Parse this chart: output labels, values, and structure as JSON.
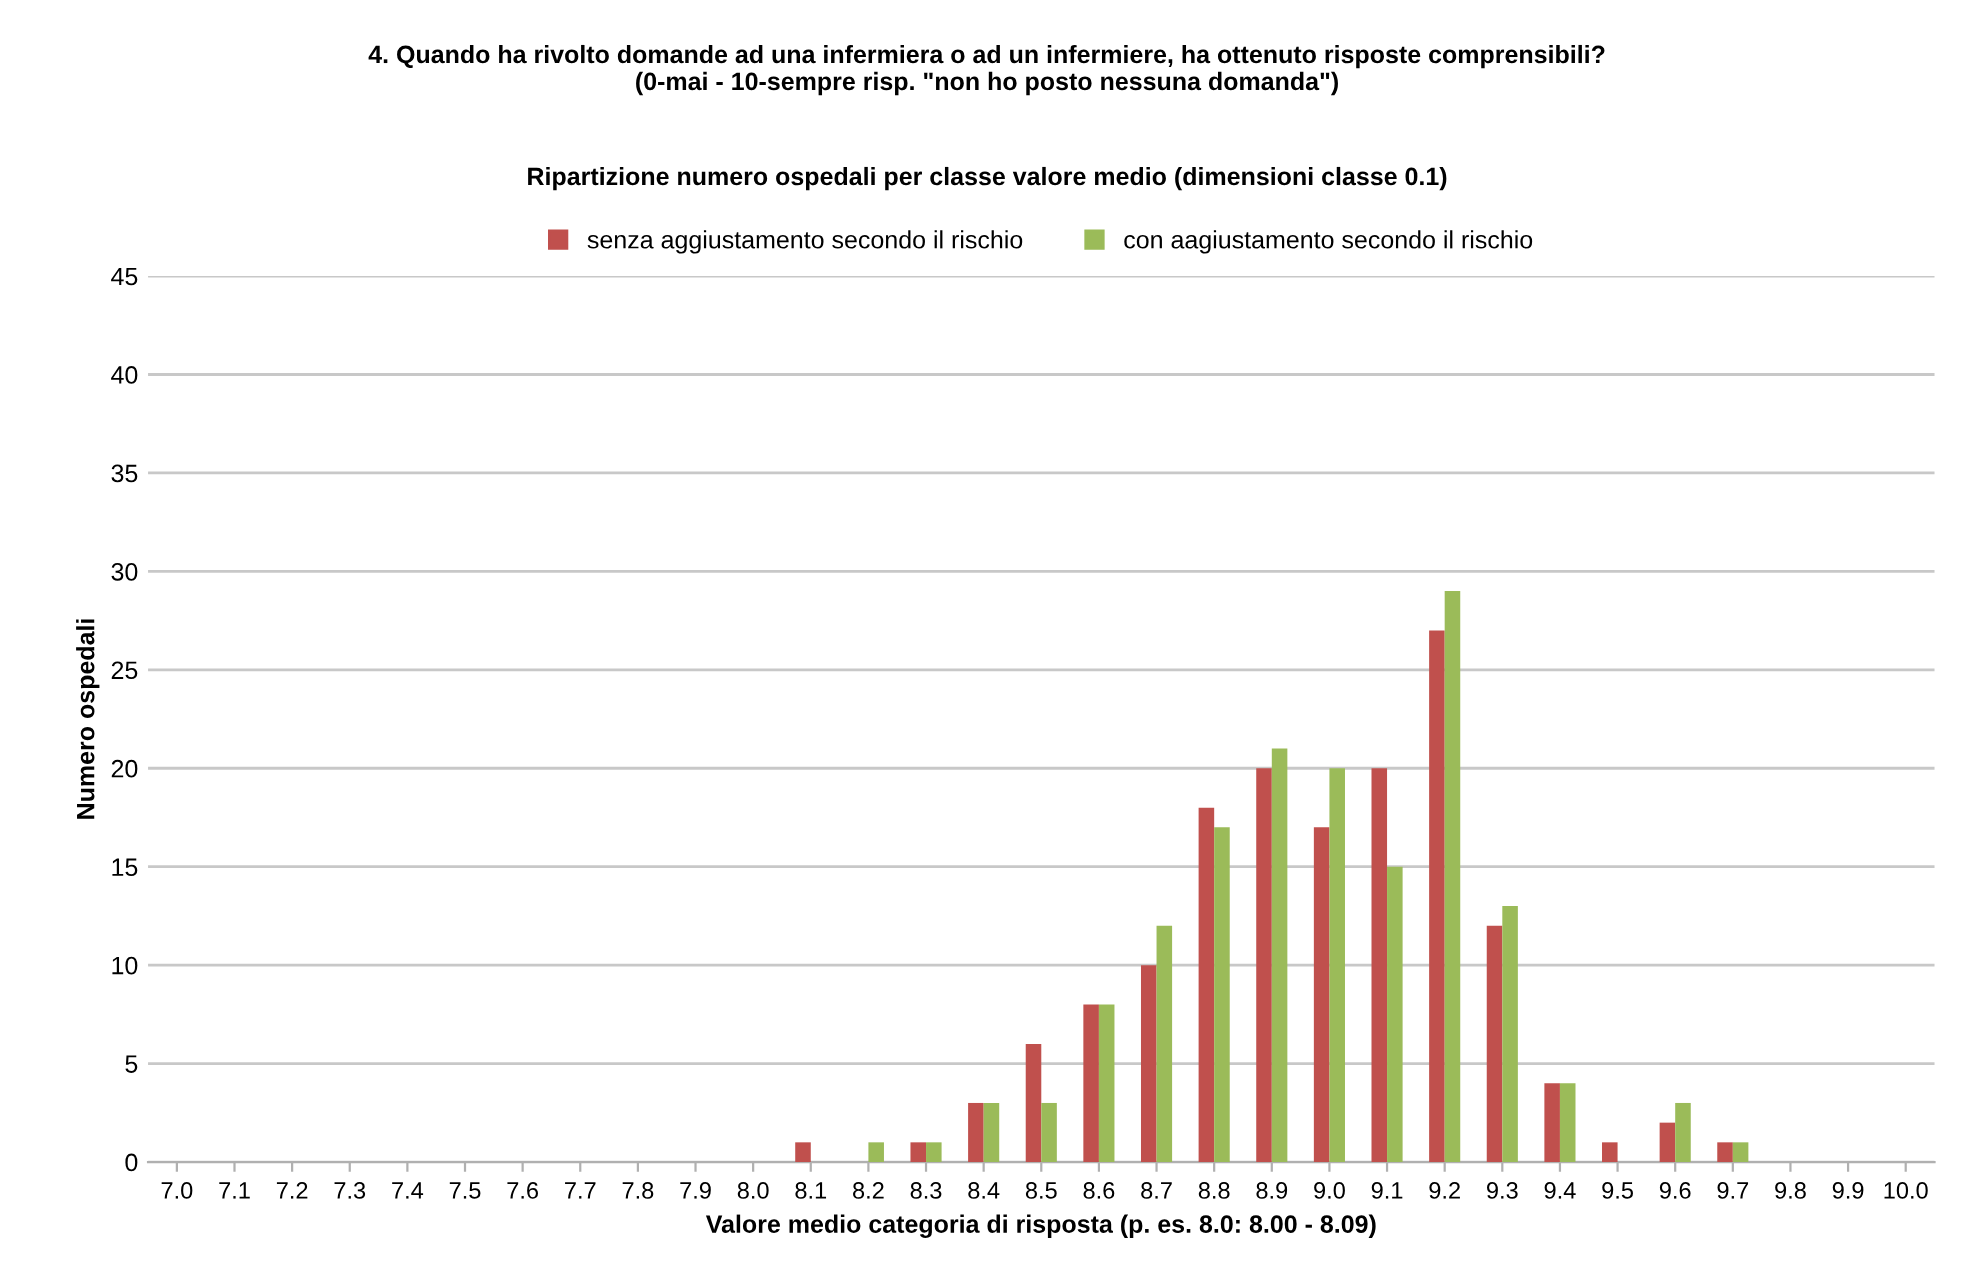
{
  "chart_data": {
    "type": "bar",
    "title": "4. Quando ha rivolto domande ad una infermiera o ad un infermiere, ha ottenuto risposte comprensibili?\n(0-mai - 10-sempre risp. \"non ho posto nessuna domanda\")",
    "subtitle": "Ripartizione numero ospedali per classe valore medio (dimensioni classe 0.1)",
    "xlabel": "Valore medio categoria di risposta (p. es. 8.0: 8.00 - 8.09)",
    "ylabel": "Numero ospedali",
    "categories": [
      "7.0",
      "7.1",
      "7.2",
      "7.3",
      "7.4",
      "7.5",
      "7.6",
      "7.7",
      "7.8",
      "7.9",
      "8.0",
      "8.1",
      "8.2",
      "8.3",
      "8.4",
      "8.5",
      "8.6",
      "8.7",
      "8.8",
      "8.9",
      "9.0",
      "9.1",
      "9.2",
      "9.3",
      "9.4",
      "9.5",
      "9.6",
      "9.7",
      "9.8",
      "9.9",
      "10.0"
    ],
    "series": [
      {
        "name": "senza aggiustamento secondo il rischio",
        "color": "#c0504d",
        "values": [
          0,
          0,
          0,
          0,
          0,
          0,
          0,
          0,
          0,
          0,
          0,
          1,
          0,
          1,
          3,
          6,
          8,
          10,
          18,
          20,
          17,
          20,
          27,
          12,
          4,
          1,
          2,
          1,
          0,
          0,
          0
        ]
      },
      {
        "name": "con aagiustamento secondo il rischio",
        "color": "#9bbb59",
        "values": [
          0,
          0,
          0,
          0,
          0,
          0,
          0,
          0,
          0,
          0,
          0,
          0,
          1,
          1,
          3,
          3,
          8,
          12,
          17,
          21,
          20,
          15,
          29,
          13,
          4,
          0,
          3,
          1,
          0,
          0,
          0
        ]
      }
    ],
    "ylim": [
      0,
      45
    ],
    "yticks": [
      0,
      5,
      10,
      15,
      20,
      25,
      30,
      35,
      40,
      45
    ],
    "grid": "y",
    "legend": "top"
  }
}
